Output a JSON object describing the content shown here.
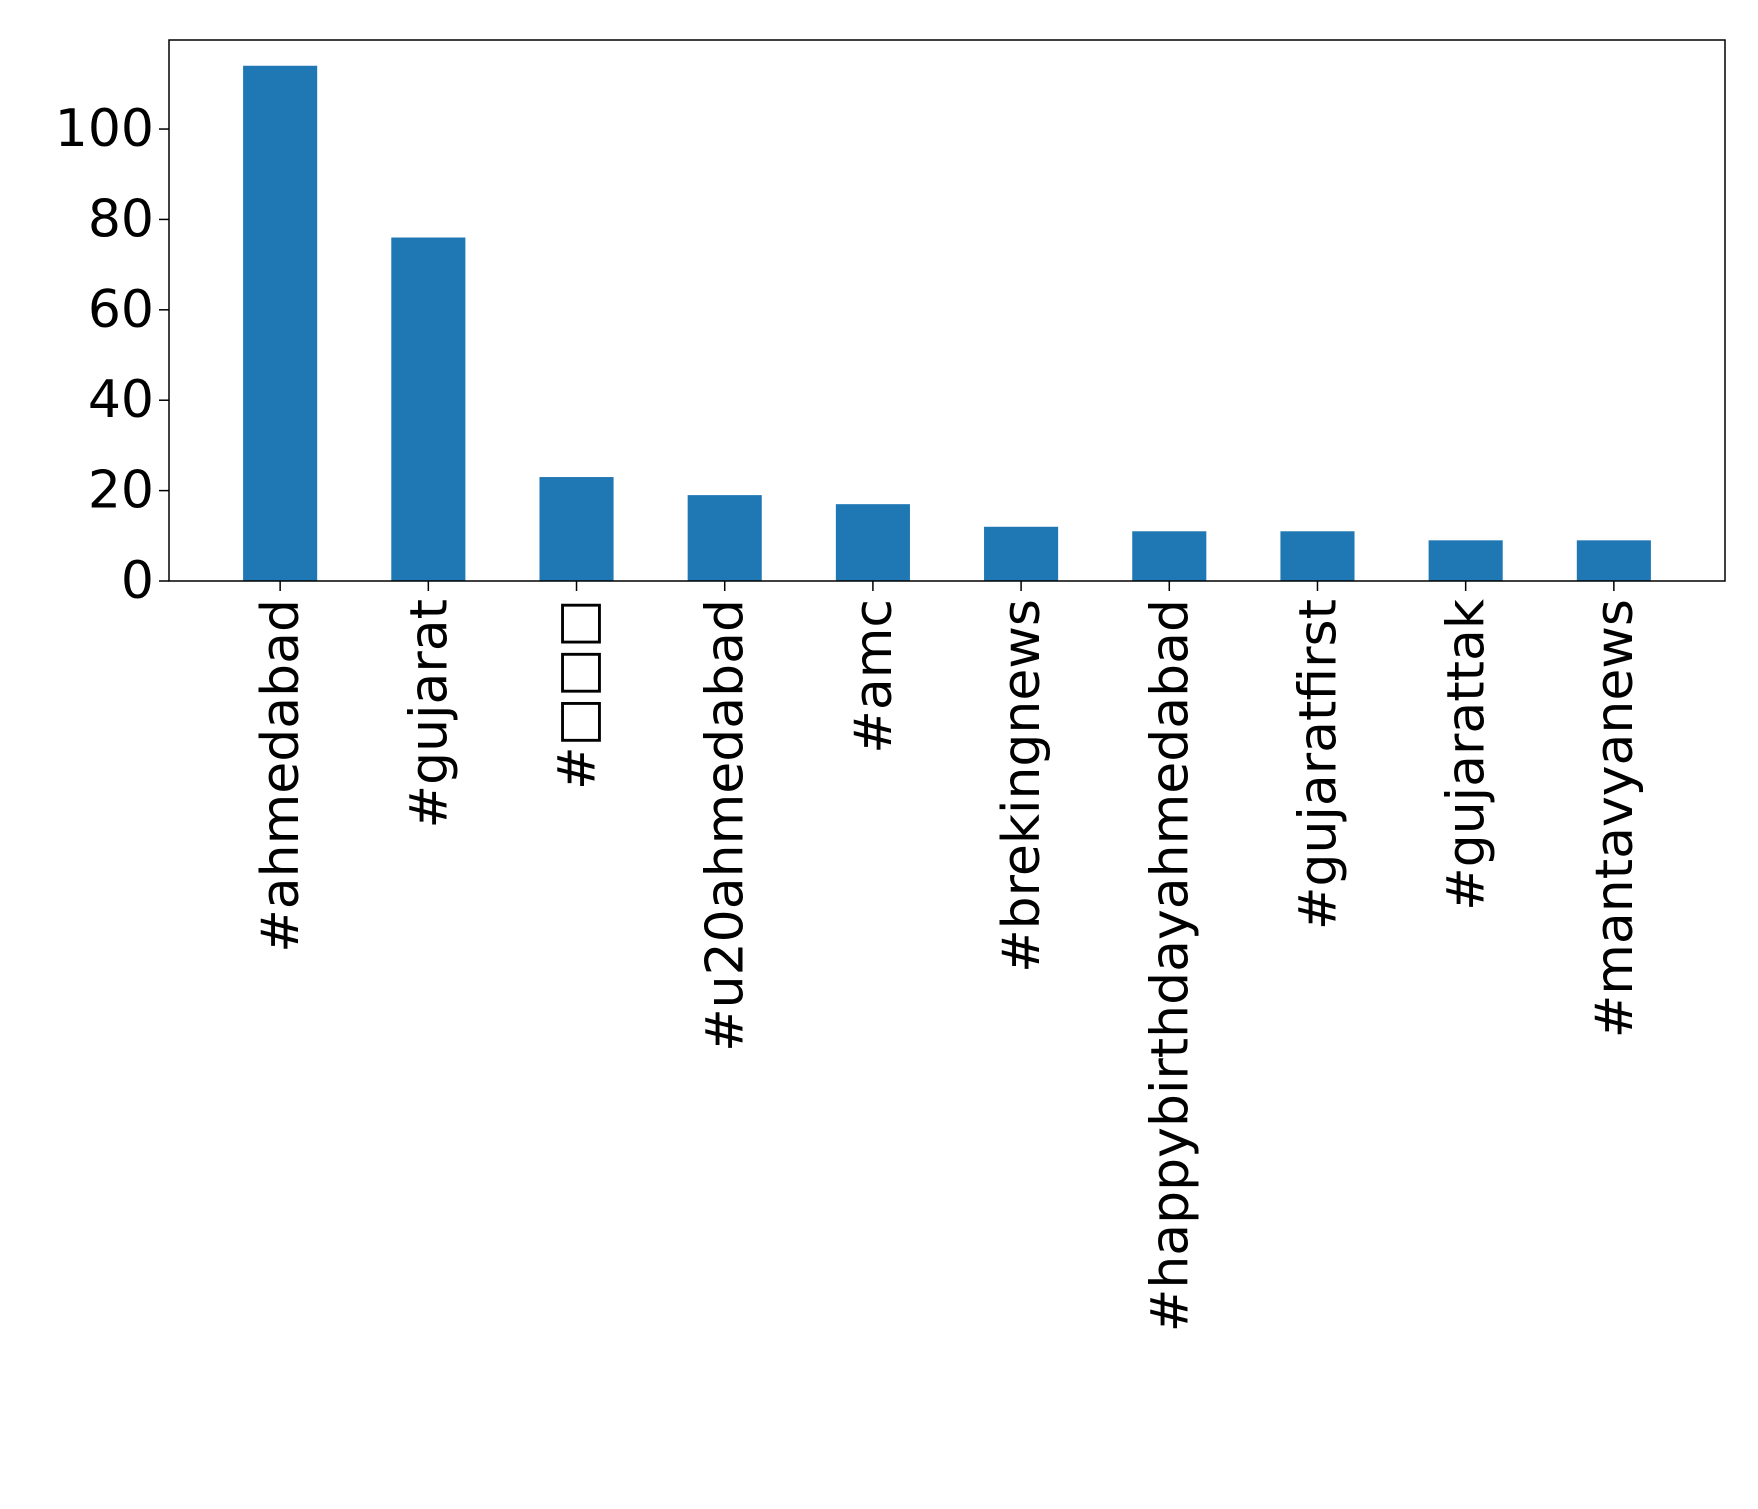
{
  "chart_data": {
    "type": "bar",
    "title": "",
    "xlabel": "",
    "ylabel": "",
    "categories": [
      "#ahmedabad",
      "#gujarat",
      "#□□□",
      "#u20ahmedabad",
      "#amc",
      "#brekingnews",
      "#happybirthdayahmedabad",
      "#gujaratfirst",
      "#gujarattak",
      "#mantavyanews"
    ],
    "values": [
      114,
      76,
      23,
      19,
      17,
      12,
      11,
      11,
      9,
      9
    ],
    "ylim": [
      0,
      119.7
    ],
    "yticks": [
      0,
      20,
      40,
      60,
      80,
      100
    ],
    "ytick_labels": [
      "0",
      "20",
      "40",
      "60",
      "80",
      "100"
    ],
    "grid": false,
    "legend": "none",
    "bar_color": "#1f77b4"
  }
}
